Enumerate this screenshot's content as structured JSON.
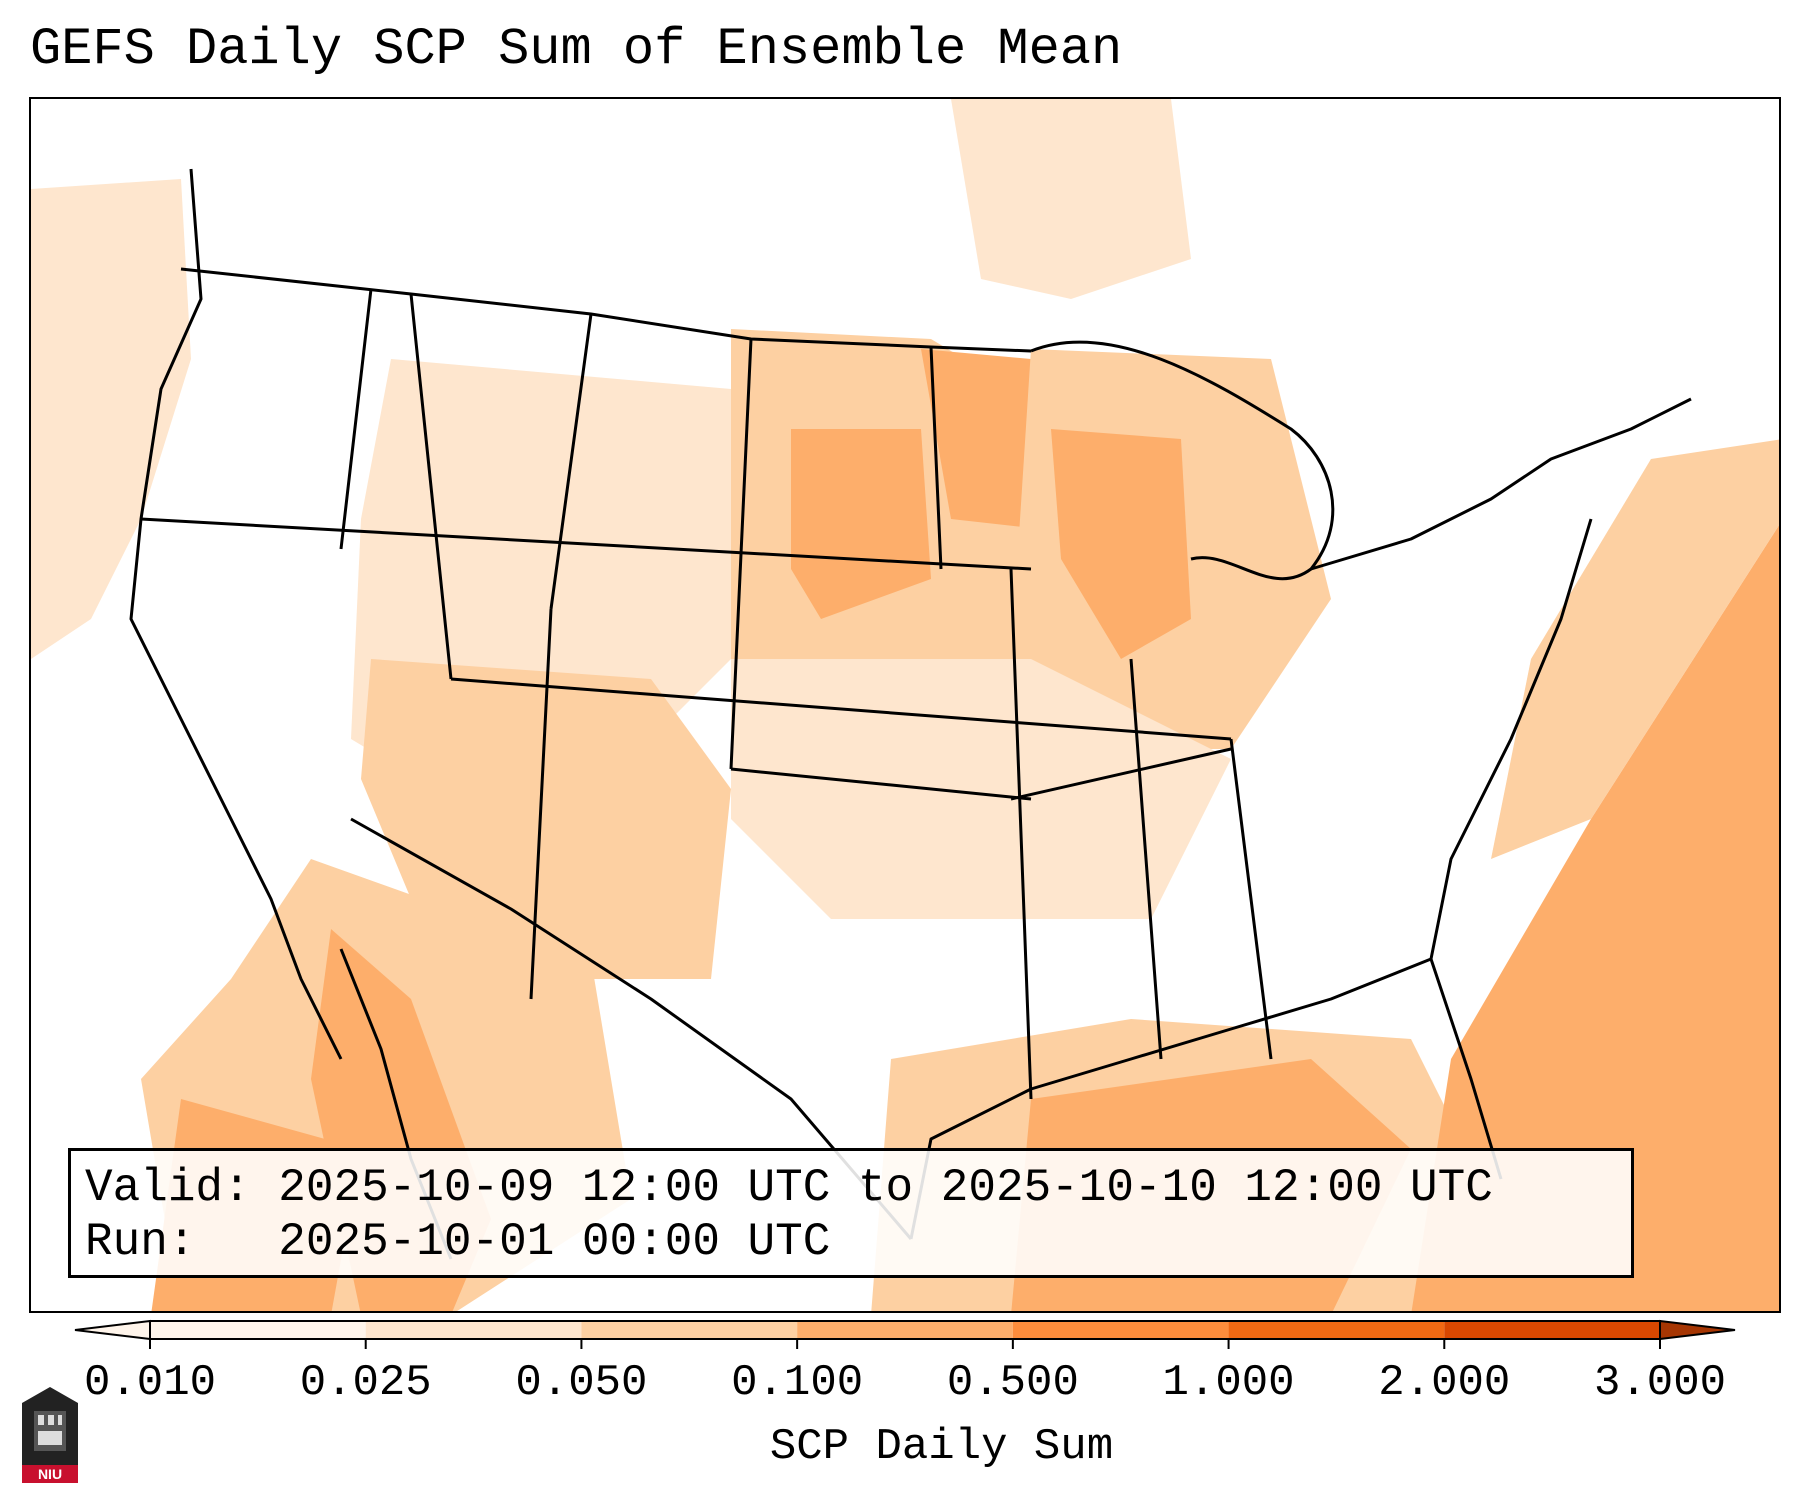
{
  "title": "GEFS Daily SCP Sum of Ensemble Mean",
  "info": {
    "valid_label": "Valid:",
    "valid_value": "2025-10-09 12:00 UTC to 2025-10-10 12:00 UTC",
    "run_label": "Run:",
    "run_value": "2025-10-01 00:00 UTC"
  },
  "colorbar": {
    "label": "SCP Daily Sum",
    "ticks": [
      "0.010",
      "0.025",
      "0.050",
      "0.100",
      "0.500",
      "1.000",
      "2.000",
      "3.000"
    ],
    "colors": [
      "#fff5eb",
      "#fee6ce",
      "#fdd0a2",
      "#fdae6b",
      "#fd8d3c",
      "#f16913",
      "#d94801",
      "#a63603"
    ],
    "extend": "both"
  },
  "logo": {
    "text": "NIU"
  },
  "map": {
    "colors": {
      "land_outline": "#000000",
      "very_light": "#fff5eb",
      "light": "#fee6ce",
      "medium": "#fdd0a2",
      "orange": "#fdae6b",
      "dark_orange": "#fd8d3c"
    }
  }
}
